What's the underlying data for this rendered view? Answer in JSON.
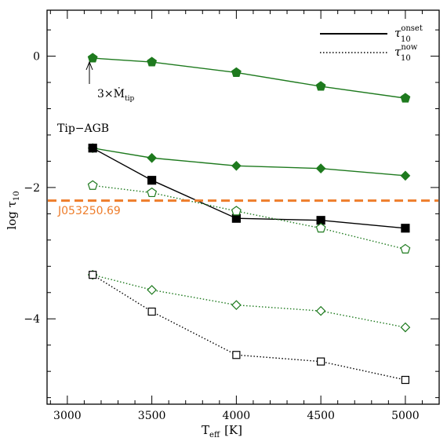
{
  "chart_data": {
    "type": "scatter",
    "xlabel": "T",
    "xlabel_sub": "eff",
    "xunit": "[K]",
    "ylabel": "log τ",
    "ylabel_sub": "10",
    "xlim": [
      2880,
      5200
    ],
    "ylim": [
      -5.3,
      0.7
    ],
    "xticks": [
      3000,
      3500,
      4000,
      4500,
      5000
    ],
    "yticks": [
      0,
      -2,
      -4
    ],
    "grid": false,
    "legend": {
      "placement": "top-right",
      "entries": [
        {
          "symbol": "τ",
          "sup": "onset",
          "sub": "10",
          "style": "solid"
        },
        {
          "symbol": "τ",
          "sup": "now",
          "sub": "10",
          "style": "dotted"
        }
      ]
    },
    "series": [
      {
        "marker": "pentagon-filled",
        "line": "solid",
        "color": "#1e7a1e",
        "x": [
          3150,
          3500,
          4000,
          4500,
          5000
        ],
        "y": [
          -0.03,
          -0.09,
          -0.25,
          -0.46,
          -0.64
        ]
      },
      {
        "marker": "diamond-filled",
        "line": "solid",
        "color": "#1e7a1e",
        "x": [
          3150,
          3500,
          4000,
          4500,
          5000
        ],
        "y": [
          -1.4,
          -1.55,
          -1.67,
          -1.71,
          -1.82
        ]
      },
      {
        "marker": "square-filled",
        "line": "solid",
        "color": "#000000",
        "x": [
          3150,
          3500,
          4000,
          4500,
          5000
        ],
        "y": [
          -1.4,
          -1.89,
          -2.47,
          -2.5,
          -2.62
        ]
      },
      {
        "marker": "pentagon-open",
        "line": "dotted",
        "color": "#1e7a1e",
        "x": [
          3150,
          3500,
          4000,
          4500,
          5000
        ],
        "y": [
          -1.97,
          -2.08,
          -2.36,
          -2.62,
          -2.94
        ]
      },
      {
        "marker": "diamond-open",
        "line": "dotted",
        "color": "#1e7a1e",
        "x": [
          3150,
          3500,
          4000,
          4500,
          5000
        ],
        "y": [
          -3.33,
          -3.56,
          -3.79,
          -3.88,
          -4.13
        ]
      },
      {
        "marker": "square-open",
        "line": "dotted",
        "color": "#000000",
        "x": [
          3150,
          3500,
          4000,
          4500,
          5000
        ],
        "y": [
          -3.33,
          -3.89,
          -4.55,
          -4.65,
          -4.93
        ]
      }
    ],
    "reference_line": {
      "y": -2.2,
      "label": "J053250.69",
      "color": "#ee7d2b",
      "style": "dashed"
    },
    "annotations": [
      {
        "text": "3×Ṁ",
        "sub": "tip",
        "arrow_x": 3150,
        "arrow_from_y": -0.95,
        "arrow_to_y": -0.15
      },
      {
        "text": "Tip−AGB"
      }
    ]
  }
}
